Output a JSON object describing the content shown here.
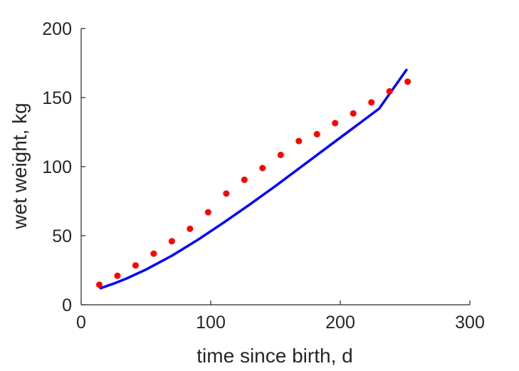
{
  "chart_data": {
    "type": "scatter",
    "title": "",
    "xlabel": "time since birth, d",
    "ylabel": "wet weight, kg",
    "xlim": [
      0,
      300
    ],
    "ylim": [
      0,
      200
    ],
    "xticks": [
      0,
      100,
      200,
      300
    ],
    "yticks": [
      0,
      50,
      100,
      150,
      200
    ],
    "xtick_labels": [
      "0",
      "100",
      "200",
      "300"
    ],
    "ytick_labels": [
      "0",
      "50",
      "100",
      "150",
      "200"
    ],
    "grid": false,
    "legend": "none",
    "series": [
      {
        "kind": "scatter",
        "color": "#ff0000",
        "x": [
          14,
          28,
          42,
          56,
          70,
          84,
          98,
          112,
          126,
          140,
          154,
          168,
          182,
          196,
          210,
          224,
          238,
          252
        ],
        "y": [
          14.5,
          21,
          28.5,
          37,
          46,
          55,
          67,
          80.5,
          90.5,
          99,
          108.5,
          118.5,
          123.5,
          131.5,
          138.5,
          146.5,
          154.5,
          161.5
        ]
      },
      {
        "kind": "line",
        "color": "#0000ff",
        "x": [
          15,
          25,
          35,
          50,
          70,
          90,
          110,
          130,
          150,
          170,
          190,
          210,
          230,
          251
        ],
        "y": [
          12,
          15.3,
          19,
          25.5,
          35.5,
          47,
          59.5,
          72.5,
          86,
          100,
          114,
          128,
          142,
          170
        ]
      }
    ]
  }
}
